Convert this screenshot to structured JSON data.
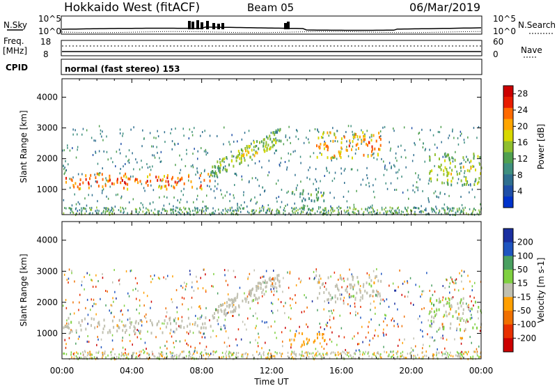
{
  "header": {
    "station": "Hokkaido West (fitACF)",
    "beam": "Beam 05",
    "date": "06/Mar/2019"
  },
  "noise_panel": {
    "left_label": "N.Sky",
    "right_label": "N.Search",
    "ticks_top": "10^5",
    "ticks_bottom": "10^0"
  },
  "freq_panel": {
    "label_line1": "Freq.",
    "label_line2": "[MHz]",
    "left_top": "18",
    "left_bottom": "8",
    "right_label": "Nave",
    "right_top": "60",
    "right_bottom": "0"
  },
  "cpid_panel": {
    "label": "CPID",
    "mode_text": "normal (fast stereo) 153"
  },
  "colors": {
    "power_scale": [
      "#0033cc",
      "#1f4fa8",
      "#2f6f8f",
      "#3f8f7f",
      "#50a050",
      "#8fbf2f",
      "#d8d800",
      "#ffa500",
      "#ff6a00",
      "#e81c00",
      "#cc0000"
    ],
    "velocity_scale": [
      "#1a2fa0",
      "#1f55c0",
      "#4aa060",
      "#7fd040",
      "#c0c0b0",
      "#ff9f00",
      "#f07000",
      "#e83000",
      "#cc0000"
    ]
  },
  "chart_data": [
    {
      "type": "heatmap",
      "name": "power",
      "ylabel": "Slant Range [km]",
      "y_ticks": [
        "1000",
        "2000",
        "3000",
        "4000"
      ],
      "ylim": [
        180,
        4600
      ],
      "x_ticks": [
        "00:00",
        "04:00",
        "08:00",
        "12:00",
        "16:00",
        "20:00",
        "00:00"
      ],
      "colorbar_label": "Power [dB]",
      "colorbar_ticks": [
        "4",
        "8",
        "12",
        "16",
        "20",
        "24",
        "28"
      ],
      "colorbar_range": [
        0,
        30
      ],
      "regions": [
        {
          "t0": 0.0,
          "t1": 8.5,
          "r0": 1050,
          "r1": 1550,
          "power": 20
        },
        {
          "t0": 8.5,
          "t1": 12.5,
          "r0": 1600,
          "r1": 2800,
          "power": 12
        },
        {
          "t0": 13.0,
          "t1": 15.0,
          "r0": 650,
          "r1": 1050,
          "power": 8
        },
        {
          "t0": 14.5,
          "t1": 18.3,
          "r0": 2000,
          "r1": 2900,
          "power": 18
        },
        {
          "t0": 21.0,
          "t1": 24.0,
          "r0": 1150,
          "r1": 2200,
          "power": 12
        }
      ]
    },
    {
      "type": "heatmap",
      "name": "velocity",
      "ylabel": "Slant Range [km]",
      "y_ticks": [
        "1000",
        "2000",
        "3000",
        "4000"
      ],
      "ylim": [
        180,
        4600
      ],
      "x_ticks": [
        "00:00",
        "04:00",
        "08:00",
        "12:00",
        "16:00",
        "20:00",
        "00:00"
      ],
      "xlabel": "Time UT",
      "colorbar_label": "Velocity [m s-1]",
      "colorbar_ticks": [
        "200",
        "100",
        "50",
        "15",
        "-15",
        "-50",
        "-100",
        "-200"
      ],
      "colorbar_range": [
        -250,
        250
      ],
      "regions": [
        {
          "t0": 0.0,
          "t1": 8.5,
          "r0": 1050,
          "r1": 1550,
          "velocity": 0
        },
        {
          "t0": 8.5,
          "t1": 12.5,
          "r0": 1600,
          "r1": 2800,
          "velocity": 0
        },
        {
          "t0": 13.0,
          "t1": 15.0,
          "r0": 650,
          "r1": 1050,
          "velocity": -60
        },
        {
          "t0": 14.5,
          "t1": 18.3,
          "r0": 2000,
          "r1": 2900,
          "velocity": 0
        },
        {
          "t0": 21.0,
          "t1": 24.0,
          "r0": 1150,
          "r1": 2200,
          "velocity": 30
        }
      ]
    }
  ]
}
